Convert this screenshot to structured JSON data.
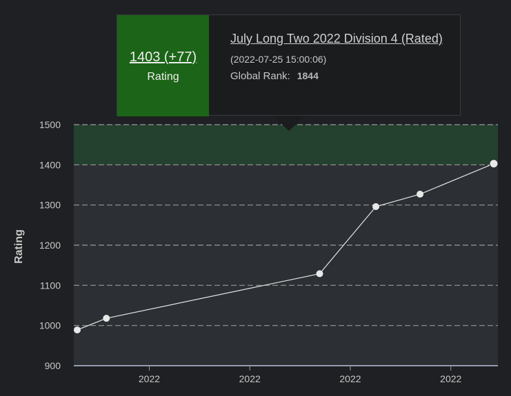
{
  "tooltip": {
    "rating_value": "1403 (+77)",
    "rating_caption": "Rating",
    "contest_name": "July Long Two 2022 Division 4 (Rated)",
    "contest_date": "(2022-07-25 15:00:06)",
    "rank_label": "Global Rank:",
    "rank_value": "1844",
    "accent_color": "#1c6417"
  },
  "chart_data": {
    "type": "line",
    "title": "",
    "xlabel": "",
    "ylabel": "Rating",
    "ylim": [
      900,
      1500
    ],
    "yticks": [
      "900",
      "1000",
      "1100",
      "1200",
      "1300",
      "1400",
      "1500"
    ],
    "xtick_labels": [
      "2022",
      "2022",
      "2022",
      "2022"
    ],
    "xtick_positions": [
      0.178,
      0.415,
      0.652,
      0.889
    ],
    "highlight_band": [
      1400,
      1500
    ],
    "series": [
      {
        "name": "Rating",
        "x": [
          0.0,
          0.07,
          0.582,
          0.717,
          0.823,
          1.0
        ],
        "values": [
          989,
          1018,
          1129,
          1296,
          1327,
          1403
        ]
      }
    ],
    "colors": {
      "plot_bg": "#2c2f33",
      "band": "#24402e",
      "line": "#e6e6e6",
      "grid": "#9a9a9a"
    }
  }
}
